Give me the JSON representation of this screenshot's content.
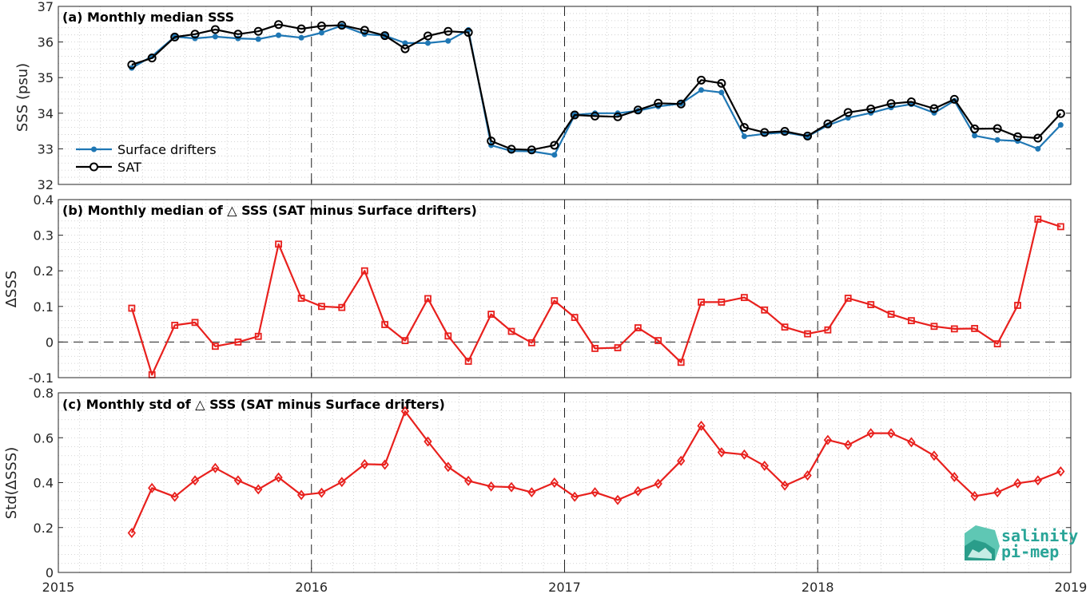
{
  "colors": {
    "drifters": "#1f77b4",
    "sat": "#000000",
    "delta": "#e8201d",
    "grid": "#c8c8c8",
    "logo": "#2aa598"
  },
  "logo": {
    "line1": "salinity",
    "line2": "pi-mep"
  },
  "x_axis": {
    "range": [
      2015,
      2019
    ],
    "ticks": [
      2015,
      2016,
      2017,
      2018,
      2019
    ],
    "tick_labels": [
      "2015",
      "2016",
      "2017",
      "2018",
      "2019"
    ],
    "year_lines": [
      2016,
      2017,
      2018
    ]
  },
  "chart_data": [
    {
      "type": "line",
      "title": "(a) Monthly median SSS",
      "ylabel": "SSS (psu)",
      "ylim": [
        32,
        37
      ],
      "yticks": [
        32,
        33,
        34,
        35,
        36,
        37
      ],
      "ytick_labels": [
        "32",
        "33",
        "34",
        "35",
        "36",
        "37"
      ],
      "grid": true,
      "legend_position": "bottom-left",
      "x": [
        2015.29,
        2015.37,
        2015.46,
        2015.54,
        2015.62,
        2015.71,
        2015.79,
        2015.87,
        2015.96,
        2016.04,
        2016.12,
        2016.21,
        2016.29,
        2016.37,
        2016.46,
        2016.54,
        2016.62,
        2016.71,
        2016.79,
        2016.87,
        2016.96,
        2017.04,
        2017.12,
        2017.21,
        2017.29,
        2017.37,
        2017.46,
        2017.54,
        2017.62,
        2017.71,
        2017.79,
        2017.87,
        2017.96,
        2018.04,
        2018.12,
        2018.21,
        2018.29,
        2018.37,
        2018.46,
        2018.54,
        2018.62,
        2018.71,
        2018.79,
        2018.87,
        2018.96
      ],
      "series": [
        {
          "name": "Surface drifters",
          "marker": "dot",
          "values": [
            35.27,
            35.6,
            36.15,
            36.1,
            36.15,
            36.1,
            36.08,
            36.19,
            36.12,
            36.26,
            36.46,
            36.22,
            36.18,
            35.97,
            35.97,
            36.03,
            36.34,
            33.1,
            32.94,
            32.93,
            32.83,
            33.95,
            34.0,
            34.0,
            34.07,
            34.19,
            34.27,
            34.65,
            34.58,
            33.35,
            33.42,
            33.46,
            33.35,
            33.66,
            33.87,
            34.01,
            34.16,
            34.25,
            34.01,
            34.35,
            33.37,
            33.25,
            33.22,
            33.0,
            33.67
          ]
        },
        {
          "name": "SAT",
          "marker": "circle",
          "values": [
            35.36,
            35.55,
            36.14,
            36.22,
            36.35,
            36.22,
            36.3,
            36.49,
            36.37,
            36.45,
            36.47,
            36.33,
            36.18,
            35.81,
            36.17,
            36.3,
            36.27,
            33.22,
            32.99,
            32.97,
            33.1,
            33.95,
            33.92,
            33.9,
            34.09,
            34.28,
            34.26,
            34.93,
            34.84,
            33.6,
            33.46,
            33.49,
            33.36,
            33.7,
            34.02,
            34.12,
            34.27,
            34.32,
            34.13,
            34.39,
            33.56,
            33.57,
            33.34,
            33.3,
            33.99
          ]
        }
      ]
    },
    {
      "type": "line",
      "title": "(b) Monthly median of △ SSS (SAT minus Surface drifters)",
      "ylabel": "ΔSSS",
      "ylim": [
        -0.1,
        0.4
      ],
      "yticks": [
        -0.1,
        0,
        0.1,
        0.2,
        0.3,
        0.4
      ],
      "ytick_labels": [
        "-0.1",
        "0",
        "0.1",
        "0.2",
        "0.3",
        "0.4"
      ],
      "grid": true,
      "zero_line": 0,
      "x": [
        2015.29,
        2015.37,
        2015.46,
        2015.54,
        2015.62,
        2015.71,
        2015.79,
        2015.87,
        2015.96,
        2016.04,
        2016.12,
        2016.21,
        2016.29,
        2016.37,
        2016.46,
        2016.54,
        2016.62,
        2016.71,
        2016.79,
        2016.87,
        2016.96,
        2017.04,
        2017.12,
        2017.21,
        2017.29,
        2017.37,
        2017.46,
        2017.54,
        2017.62,
        2017.71,
        2017.79,
        2017.87,
        2017.96,
        2018.04,
        2018.12,
        2018.21,
        2018.29,
        2018.37,
        2018.46,
        2018.54,
        2018.62,
        2018.71,
        2018.79,
        2018.87,
        2018.96
      ],
      "series": [
        {
          "marker": "square",
          "values": [
            0.095,
            -0.092,
            0.047,
            0.055,
            -0.012,
            0.0,
            0.016,
            0.275,
            0.123,
            0.1,
            0.097,
            0.2,
            0.049,
            0.004,
            0.122,
            0.017,
            -0.054,
            0.078,
            0.03,
            -0.002,
            0.116,
            0.069,
            -0.018,
            -0.016,
            0.04,
            0.004,
            -0.057,
            0.112,
            0.112,
            0.125,
            0.09,
            0.042,
            0.023,
            0.034,
            0.123,
            0.105,
            0.078,
            0.06,
            0.044,
            0.037,
            0.038,
            -0.005,
            0.103,
            0.345,
            0.324
          ]
        }
      ]
    },
    {
      "type": "line",
      "title": "(c) Monthly std of △ SSS (SAT minus Surface drifters)",
      "ylabel": "Std(ΔSSS)",
      "ylim": [
        0,
        0.8
      ],
      "yticks": [
        0,
        0.2,
        0.4,
        0.6,
        0.8
      ],
      "ytick_labels": [
        "0",
        "0.2",
        "0.4",
        "0.6",
        "0.8"
      ],
      "grid": true,
      "x": [
        2015.29,
        2015.37,
        2015.46,
        2015.54,
        2015.62,
        2015.71,
        2015.79,
        2015.87,
        2015.96,
        2016.04,
        2016.12,
        2016.21,
        2016.29,
        2016.37,
        2016.46,
        2016.54,
        2016.62,
        2016.71,
        2016.79,
        2016.87,
        2016.96,
        2017.04,
        2017.12,
        2017.21,
        2017.29,
        2017.37,
        2017.46,
        2017.54,
        2017.62,
        2017.71,
        2017.79,
        2017.87,
        2017.96,
        2018.04,
        2018.12,
        2018.21,
        2018.29,
        2018.37,
        2018.46,
        2018.54,
        2018.62,
        2018.71,
        2018.79,
        2018.87,
        2018.96
      ],
      "series": [
        {
          "marker": "diamond",
          "values": [
            0.176,
            0.376,
            0.337,
            0.41,
            0.465,
            0.41,
            0.37,
            0.423,
            0.345,
            0.355,
            0.403,
            0.482,
            0.48,
            0.718,
            0.583,
            0.47,
            0.408,
            0.383,
            0.38,
            0.357,
            0.4,
            0.337,
            0.357,
            0.323,
            0.362,
            0.395,
            0.497,
            0.653,
            0.535,
            0.525,
            0.475,
            0.387,
            0.432,
            0.59,
            0.568,
            0.62,
            0.62,
            0.58,
            0.52,
            0.425,
            0.34,
            0.357,
            0.397,
            0.41,
            0.45
          ]
        }
      ]
    }
  ]
}
